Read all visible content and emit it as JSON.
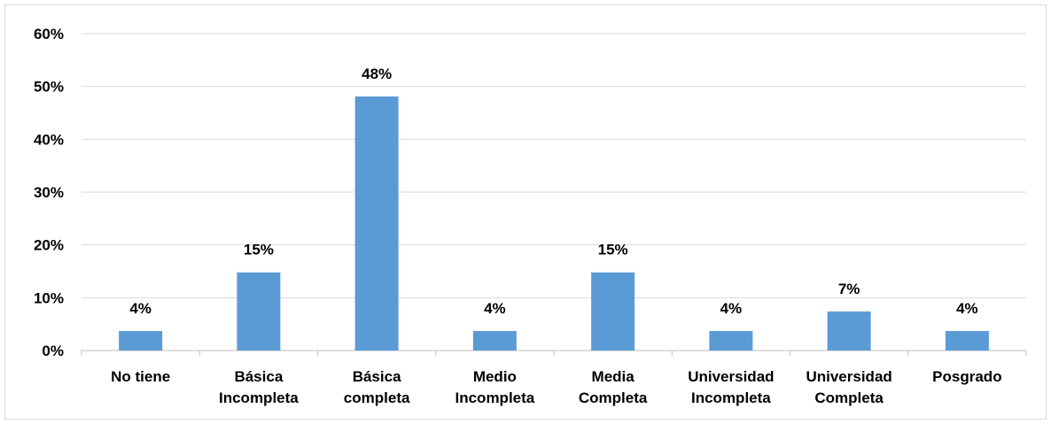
{
  "chart_data": {
    "type": "bar",
    "categories": [
      [
        "No tiene"
      ],
      [
        "Básica",
        "Incompleta"
      ],
      [
        "Básica",
        "completa"
      ],
      [
        "Medio",
        "Incompleta"
      ],
      [
        "Media",
        "Completa"
      ],
      [
        "Universidad",
        "Incompleta"
      ],
      [
        "Universidad",
        "Completa"
      ],
      [
        "Posgrado"
      ]
    ],
    "values": [
      3.7,
      14.8,
      48.1,
      3.7,
      14.8,
      3.7,
      7.4,
      3.7
    ],
    "data_labels": [
      "4%",
      "15%",
      "48%",
      "4%",
      "15%",
      "4%",
      "7%",
      "4%"
    ],
    "ylim": [
      0,
      60
    ],
    "yticks": [
      0,
      10,
      20,
      30,
      40,
      50,
      60
    ],
    "ytick_labels": [
      "0%",
      "10%",
      "20%",
      "30%",
      "40%",
      "50%",
      "60%"
    ],
    "grid": true,
    "bar_color": "#5b9bd5",
    "grid_color": "#d9d9d9",
    "title": "",
    "xlabel": "",
    "ylabel": ""
  }
}
